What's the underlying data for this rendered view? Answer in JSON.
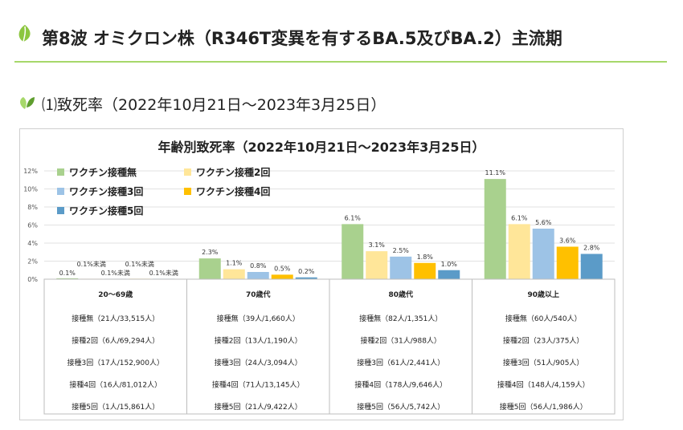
{
  "heading": "第8波 オミクロン株（R346T変異を有するBA.5及びBA.2）主流期",
  "subheading": "⑴致死率（2022年10月21日～2023年3月25日）",
  "icons": {
    "heading": "leaf-icon",
    "subheading": "sprout-icon"
  },
  "chart_data": {
    "type": "bar",
    "title": "年齢別致死率（2022年10月21日～2023年3月25日）",
    "ylabel": "",
    "ylim": [
      0,
      12
    ],
    "yticks": [
      0,
      2,
      4,
      6,
      8,
      10,
      12
    ],
    "ytick_labels": [
      "0%",
      "2%",
      "4%",
      "6%",
      "8%",
      "10%",
      "12%"
    ],
    "grid": true,
    "legend_position": "top-left",
    "categories": [
      "20～69歳",
      "70歳代",
      "80歳代",
      "90歳以上"
    ],
    "series": [
      {
        "name": "ワクチン接種無",
        "color": "#a9d18e",
        "values": [
          0.1,
          2.3,
          6.1,
          11.1
        ],
        "labels": [
          "0.1%",
          "2.3%",
          "6.1%",
          "11.1%"
        ]
      },
      {
        "name": "ワクチン接種2回",
        "color": "#ffe699",
        "values": [
          0.05,
          1.1,
          3.1,
          6.1
        ],
        "labels": [
          "0.1%未満",
          "1.1%",
          "3.1%",
          "6.1%"
        ]
      },
      {
        "name": "ワクチン接種3回",
        "color": "#9dc3e6",
        "values": [
          0.05,
          0.8,
          2.5,
          5.6
        ],
        "labels": [
          "0.1%未満",
          "0.8%",
          "2.5%",
          "5.6%"
        ]
      },
      {
        "name": "ワクチン接種4回",
        "color": "#ffc000",
        "values": [
          0.05,
          0.5,
          1.8,
          3.6
        ],
        "labels": [
          "0.1%未満",
          "0.5%",
          "1.8%",
          "3.6%"
        ]
      },
      {
        "name": "ワクチン接種5回",
        "color": "#5b9bc8",
        "values": [
          0.05,
          0.2,
          1.0,
          2.8
        ],
        "labels": [
          "0.1%未満",
          "0.2%",
          "1.0%",
          "2.8%"
        ]
      }
    ],
    "table": [
      [
        "接種無（21人/33,515人）",
        "接種2回（6人/69,294人）",
        "接種3回（17人/152,900人）",
        "接種4回（16人/81,012人）",
        "接種5回（1人/15,861人）"
      ],
      [
        "接種無（39人/1,660人）",
        "接種2回（13人/1,190人）",
        "接種3回（24人/3,094人）",
        "接種4回（71人/13,145人）",
        "接種5回（21人/9,422人）"
      ],
      [
        "接種無（82人/1,351人）",
        "接種2回（31人/988人）",
        "接種3回（61人/2,441人）",
        "接種4回（178人/9,646人）",
        "接種5回（56人/5,742人）"
      ],
      [
        "接種無（60人/540人）",
        "接種2回（23人/375人）",
        "接種3回（51人/905人）",
        "接種4回（148人/4,159人）",
        "接種5回（56人/1,986人）"
      ]
    ]
  }
}
